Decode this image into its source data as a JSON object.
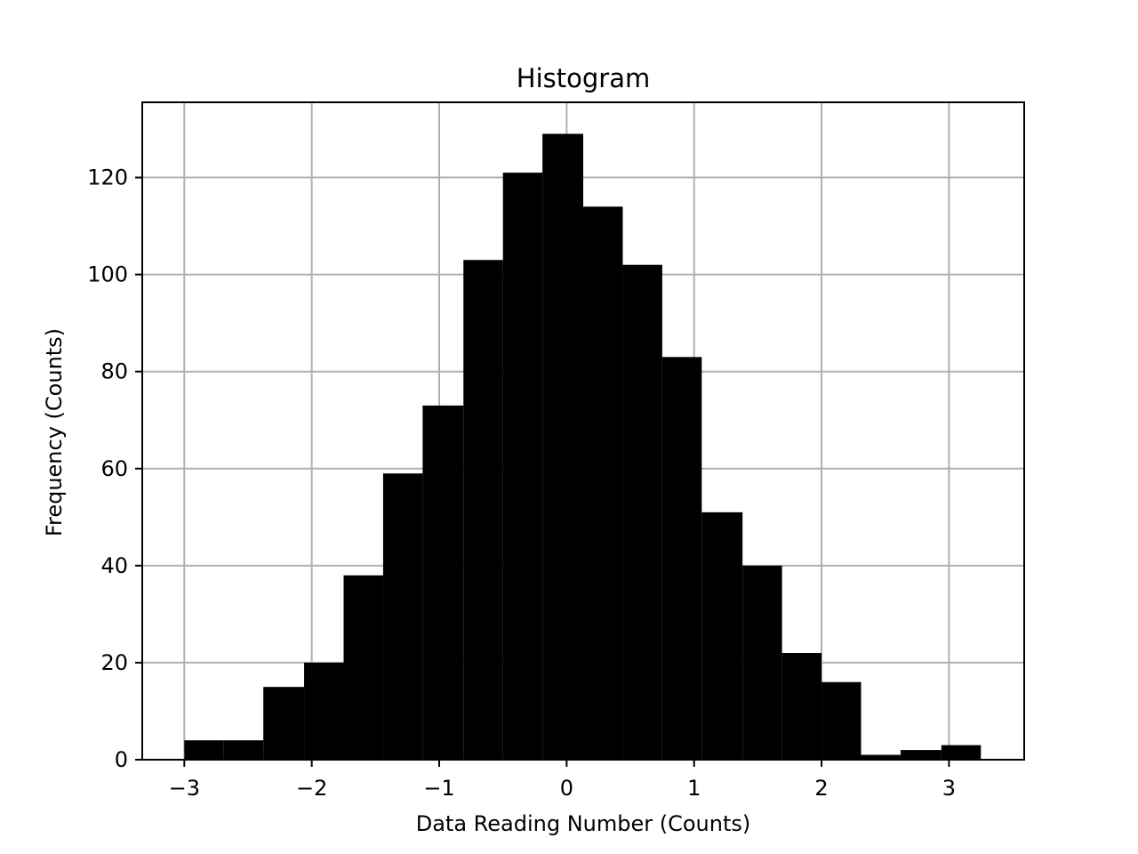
{
  "chart_data": {
    "type": "bar",
    "title": "Histogram",
    "xlabel": "Data Reading Number (Counts)",
    "ylabel": "Frequency (Counts)",
    "bar_color": "#000000",
    "grid": true,
    "xlim": [
      -3.33,
      3.59
    ],
    "ylim": [
      0,
      135.5
    ],
    "xticks": [
      {
        "value": -3,
        "label": "−3"
      },
      {
        "value": -2,
        "label": "−2"
      },
      {
        "value": -1,
        "label": "−1"
      },
      {
        "value": 0,
        "label": "0"
      },
      {
        "value": 1,
        "label": "1"
      },
      {
        "value": 2,
        "label": "2"
      },
      {
        "value": 3,
        "label": "3"
      }
    ],
    "yticks": [
      {
        "value": 0,
        "label": "0"
      },
      {
        "value": 20,
        "label": "20"
      },
      {
        "value": 40,
        "label": "40"
      },
      {
        "value": 60,
        "label": "60"
      },
      {
        "value": 80,
        "label": "80"
      },
      {
        "value": 100,
        "label": "100"
      },
      {
        "value": 120,
        "label": "120"
      }
    ],
    "bin_edges": [
      -3.0,
      -2.69,
      -2.38,
      -2.06,
      -1.75,
      -1.44,
      -1.13,
      -0.81,
      -0.5,
      -0.19,
      0.13,
      0.44,
      0.75,
      1.06,
      1.38,
      1.69,
      2.0,
      2.31,
      2.62,
      2.94,
      3.25
    ],
    "values": [
      4,
      4,
      15,
      20,
      38,
      59,
      73,
      103,
      121,
      129,
      114,
      102,
      83,
      51,
      40,
      22,
      16,
      1,
      2,
      3
    ]
  }
}
